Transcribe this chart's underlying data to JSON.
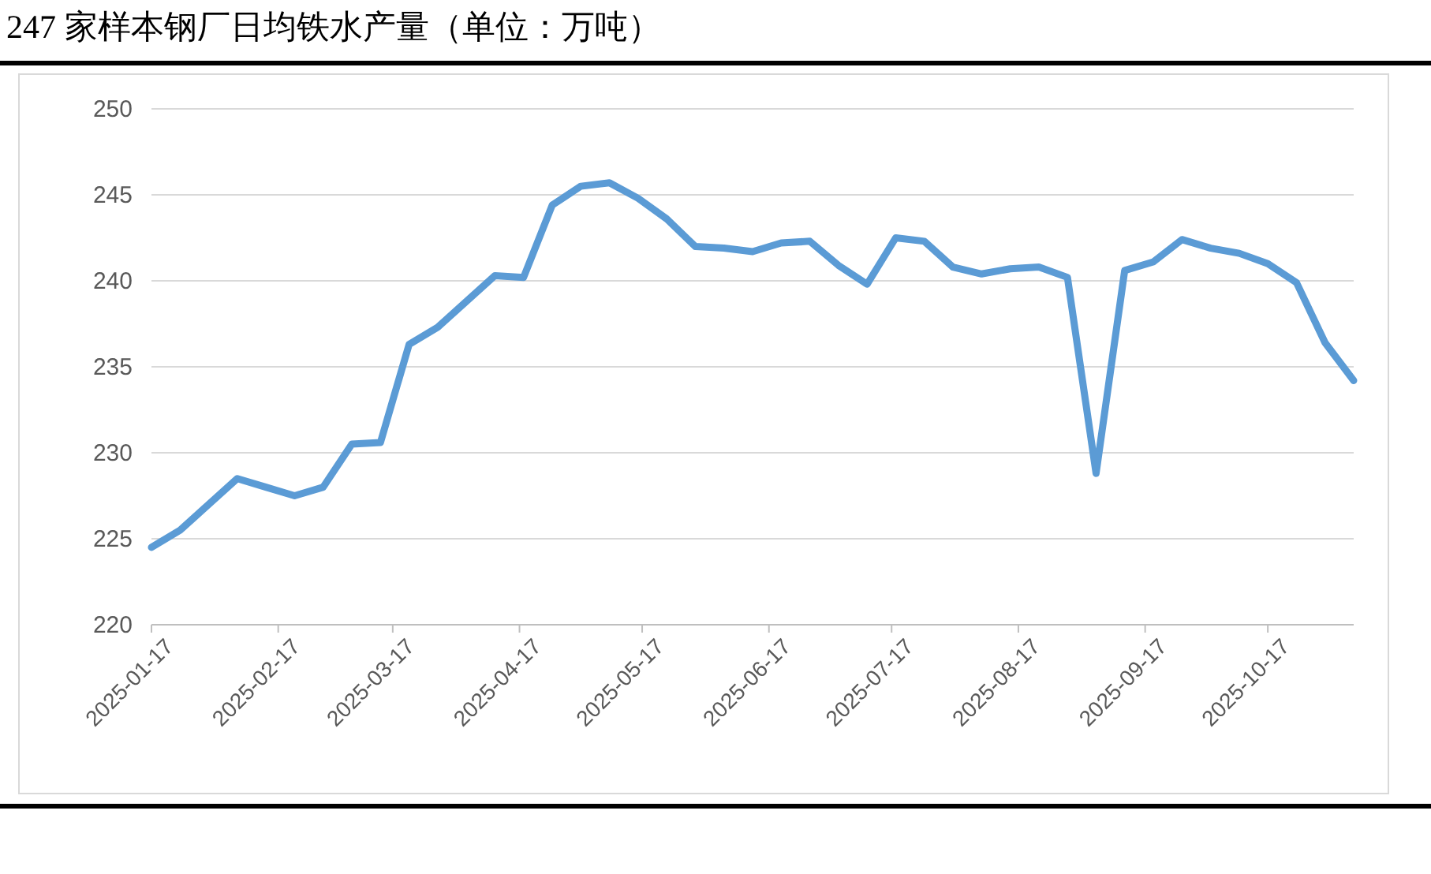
{
  "chart_data": {
    "type": "line",
    "title": "247 家样本钢厂日均铁水产量（单位：万吨）",
    "x": [
      "2025-01-17",
      "2025-01-24",
      "2025-01-31",
      "2025-02-07",
      "2025-02-14",
      "2025-02-21",
      "2025-02-28",
      "2025-03-07",
      "2025-03-14",
      "2025-03-21",
      "2025-03-28",
      "2025-04-04",
      "2025-04-11",
      "2025-04-18",
      "2025-04-25",
      "2025-05-02",
      "2025-05-09",
      "2025-05-16",
      "2025-05-23",
      "2025-05-30",
      "2025-06-06",
      "2025-06-13",
      "2025-06-20",
      "2025-06-27",
      "2025-07-04",
      "2025-07-11",
      "2025-07-18",
      "2025-07-25",
      "2025-08-01",
      "2025-08-08",
      "2025-08-15",
      "2025-08-22",
      "2025-08-29",
      "2025-09-05",
      "2025-09-12",
      "2025-09-19",
      "2025-09-26",
      "2025-10-03",
      "2025-10-10",
      "2025-10-17",
      "2025-10-24",
      "2025-10-31",
      "2025-11-07"
    ],
    "series": [
      {
        "color": "#5b9bd5",
        "values": [
          224.5,
          225.5,
          227,
          228.5,
          228,
          227.5,
          228,
          230.5,
          230.6,
          236.3,
          237.3,
          238.8,
          240.3,
          240.2,
          244.4,
          245.5,
          245.7,
          244.8,
          243.6,
          242,
          241.9,
          241.7,
          242.2,
          242.3,
          240.9,
          239.8,
          242.5,
          242.3,
          240.8,
          240.4,
          240.7,
          240.8,
          240.2,
          228.8,
          240.6,
          241.1,
          242.4,
          241.9,
          241.6,
          241,
          239.9,
          236.4,
          234.2
        ]
      }
    ],
    "xlim": [
      "2025-01-17",
      "2025-11-07"
    ],
    "xticks": [
      {
        "value": "2025-01-17",
        "label": "2025-01-17"
      },
      {
        "value": "2025-02-17",
        "label": "2025-02-17"
      },
      {
        "value": "2025-03-17",
        "label": "2025-03-17"
      },
      {
        "value": "2025-04-17",
        "label": "2025-04-17"
      },
      {
        "value": "2025-05-17",
        "label": "2025-05-17"
      },
      {
        "value": "2025-06-17",
        "label": "2025-06-17"
      },
      {
        "value": "2025-07-17",
        "label": "2025-07-17"
      },
      {
        "value": "2025-08-17",
        "label": "2025-08-17"
      },
      {
        "value": "2025-09-17",
        "label": "2025-09-17"
      },
      {
        "value": "2025-10-17",
        "label": "2025-10-17"
      }
    ],
    "ylim": [
      220,
      250
    ],
    "yticks": [
      220,
      225,
      230,
      235,
      240,
      245,
      250
    ],
    "grid": "y",
    "marker": "none",
    "line_style": "solid"
  }
}
